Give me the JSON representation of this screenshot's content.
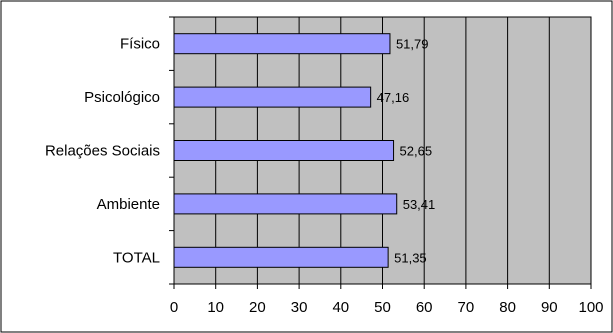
{
  "chart_data": {
    "type": "bar",
    "orientation": "horizontal",
    "title": "",
    "xlabel": "",
    "ylabel": "",
    "categories": [
      "Físico",
      "Psicológico",
      "Relações Sociais",
      "Ambiente",
      "TOTAL"
    ],
    "values": [
      51.79,
      47.16,
      52.65,
      53.41,
      51.35
    ],
    "value_labels": [
      "51,79",
      "47,16",
      "52,65",
      "53,41",
      "51,35"
    ],
    "xlim": [
      0,
      100
    ],
    "x_ticks": [
      "0",
      "10",
      "20",
      "30",
      "40",
      "50",
      "60",
      "70",
      "80",
      "90",
      "100"
    ],
    "grid": true,
    "legend": "none",
    "colors": {
      "bar_fill": "#9999ff",
      "bar_stroke": "#000000",
      "plot_background": "#c0c0c0",
      "gridline": "#000000"
    }
  }
}
